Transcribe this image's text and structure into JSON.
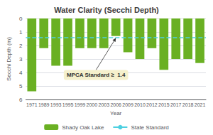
{
  "chart_data": {
    "type": "bar",
    "title": "Water Clarity (Secchi Depth)",
    "x_label": "Year",
    "y_label": "Secchi Depth (m)",
    "categories": [
      "1971",
      "1989",
      "1993",
      "1995",
      "1999",
      "2000",
      "2003",
      "2006",
      "2009",
      "2010",
      "2012",
      "2015",
      "2017",
      "2018",
      "2021"
    ],
    "series": [
      {
        "name": "Shady Oak Lake",
        "color": "#6ab023",
        "values": [
          5.4,
          2.2,
          3.5,
          3.5,
          2.2,
          2.2,
          2.2,
          1.3,
          2.5,
          3.0,
          2.2,
          3.8,
          3.0,
          3.0,
          3.3
        ]
      }
    ],
    "reference_lines": [
      {
        "name": "State Standard",
        "value": 1.4,
        "color": "#4dd0e1",
        "line_style": "dashed"
      }
    ],
    "annotations": [
      {
        "text": "MPCA Standard ≥  1.4",
        "x": "2006",
        "y": 1.45,
        "color": "#f5f0cc"
      }
    ],
    "ylim": [
      6,
      0
    ],
    "yticks": [
      0,
      1,
      2,
      3,
      4,
      5,
      6
    ],
    "grid": true,
    "legend": "bottom"
  }
}
